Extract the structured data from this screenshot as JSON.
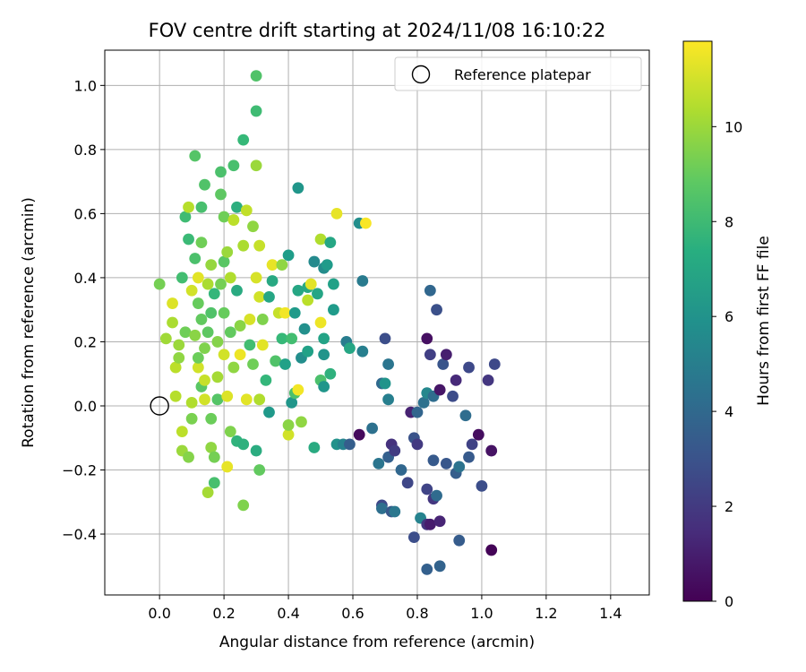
{
  "chart_data": {
    "type": "scatter",
    "title": "FOV centre drift starting at 2024/11/08 16:10:22",
    "xlabel": "Angular distance from reference (arcmin)",
    "ylabel": "Rotation from reference (arcmin)",
    "xlim": [
      -0.17,
      1.52
    ],
    "ylim": [
      -0.59,
      1.11
    ],
    "xticks": [
      "0.0",
      "0.2",
      "0.4",
      "0.6",
      "0.8",
      "1.0",
      "1.2",
      "1.4"
    ],
    "yticks": [
      "−0.4",
      "−0.2",
      "0.0",
      "0.2",
      "0.4",
      "0.6",
      "0.8",
      "1.0"
    ],
    "grid": true,
    "legend": {
      "position": "top-right",
      "label": "Reference platepar"
    },
    "reference_point": {
      "x": 0.0,
      "y": 0.0
    },
    "colorbar": {
      "label": "Hours from first FF file",
      "range": [
        0,
        11.8
      ],
      "ticks": [
        "0",
        "2",
        "4",
        "6",
        "8",
        "10"
      ],
      "colormap": "viridis"
    },
    "points": [
      {
        "x": 0.0,
        "y": 0.38,
        "h": 9.3
      },
      {
        "x": 0.02,
        "y": 0.21,
        "h": 10.1
      },
      {
        "x": 0.04,
        "y": 0.26,
        "h": 10.3
      },
      {
        "x": 0.04,
        "y": 0.32,
        "h": 11.2
      },
      {
        "x": 0.05,
        "y": 0.03,
        "h": 10.5
      },
      {
        "x": 0.05,
        "y": 0.12,
        "h": 10.6
      },
      {
        "x": 0.06,
        "y": 0.19,
        "h": 10.0
      },
      {
        "x": 0.06,
        "y": 0.15,
        "h": 9.8
      },
      {
        "x": 0.07,
        "y": -0.14,
        "h": 10.0
      },
      {
        "x": 0.07,
        "y": -0.08,
        "h": 10.6
      },
      {
        "x": 0.07,
        "y": 0.4,
        "h": 8.2
      },
      {
        "x": 0.08,
        "y": 0.59,
        "h": 8.1
      },
      {
        "x": 0.08,
        "y": 0.23,
        "h": 9.2
      },
      {
        "x": 0.09,
        "y": 0.52,
        "h": 8.0
      },
      {
        "x": 0.09,
        "y": 0.62,
        "h": 10.5
      },
      {
        "x": 0.09,
        "y": -0.16,
        "h": 9.6
      },
      {
        "x": 0.1,
        "y": -0.04,
        "h": 9.4
      },
      {
        "x": 0.1,
        "y": 0.36,
        "h": 11.0
      },
      {
        "x": 0.1,
        "y": 0.01,
        "h": 10.4
      },
      {
        "x": 0.11,
        "y": 0.22,
        "h": 9.7
      },
      {
        "x": 0.11,
        "y": 0.46,
        "h": 8.4
      },
      {
        "x": 0.11,
        "y": 0.78,
        "h": 8.6
      },
      {
        "x": 0.12,
        "y": 0.4,
        "h": 11.3
      },
      {
        "x": 0.12,
        "y": 0.32,
        "h": 9.0
      },
      {
        "x": 0.12,
        "y": 0.12,
        "h": 11.0
      },
      {
        "x": 0.12,
        "y": 0.15,
        "h": 9.1
      },
      {
        "x": 0.13,
        "y": 0.06,
        "h": 8.7
      },
      {
        "x": 0.13,
        "y": 0.27,
        "h": 8.9
      },
      {
        "x": 0.13,
        "y": 0.51,
        "h": 9.2
      },
      {
        "x": 0.13,
        "y": 0.62,
        "h": 8.3
      },
      {
        "x": 0.14,
        "y": 0.69,
        "h": 8.5
      },
      {
        "x": 0.14,
        "y": 0.08,
        "h": 10.8
      },
      {
        "x": 0.14,
        "y": 0.02,
        "h": 11.0
      },
      {
        "x": 0.14,
        "y": 0.18,
        "h": 9.5
      },
      {
        "x": 0.15,
        "y": 0.38,
        "h": 10.3
      },
      {
        "x": 0.15,
        "y": 0.23,
        "h": 8.8
      },
      {
        "x": 0.15,
        "y": -0.27,
        "h": 10.2
      },
      {
        "x": 0.16,
        "y": -0.13,
        "h": 9.8
      },
      {
        "x": 0.16,
        "y": 0.44,
        "h": 9.9
      },
      {
        "x": 0.16,
        "y": 0.29,
        "h": 8.5
      },
      {
        "x": 0.16,
        "y": -0.04,
        "h": 9.1
      },
      {
        "x": 0.17,
        "y": -0.24,
        "h": 8.3
      },
      {
        "x": 0.17,
        "y": 0.35,
        "h": 7.8
      },
      {
        "x": 0.17,
        "y": -0.16,
        "h": 9.3
      },
      {
        "x": 0.18,
        "y": 0.2,
        "h": 9.6
      },
      {
        "x": 0.18,
        "y": 0.02,
        "h": 8.6
      },
      {
        "x": 0.18,
        "y": 0.09,
        "h": 10.2
      },
      {
        "x": 0.19,
        "y": 0.38,
        "h": 9.3
      },
      {
        "x": 0.19,
        "y": 0.73,
        "h": 8.4
      },
      {
        "x": 0.19,
        "y": 0.66,
        "h": 8.8
      },
      {
        "x": 0.2,
        "y": 0.16,
        "h": 11.0
      },
      {
        "x": 0.2,
        "y": 0.29,
        "h": 9.0
      },
      {
        "x": 0.2,
        "y": 0.45,
        "h": 8.7
      },
      {
        "x": 0.2,
        "y": 0.59,
        "h": 9.2
      },
      {
        "x": 0.21,
        "y": -0.19,
        "h": 11.4
      },
      {
        "x": 0.21,
        "y": 0.03,
        "h": 11.2
      },
      {
        "x": 0.21,
        "y": 0.48,
        "h": 10.0
      },
      {
        "x": 0.22,
        "y": -0.08,
        "h": 9.5
      },
      {
        "x": 0.22,
        "y": 0.23,
        "h": 8.9
      },
      {
        "x": 0.22,
        "y": 0.4,
        "h": 10.4
      },
      {
        "x": 0.23,
        "y": 0.75,
        "h": 8.3
      },
      {
        "x": 0.23,
        "y": 0.58,
        "h": 10.6
      },
      {
        "x": 0.23,
        "y": 0.12,
        "h": 9.8
      },
      {
        "x": 0.24,
        "y": 0.36,
        "h": 7.2
      },
      {
        "x": 0.24,
        "y": -0.11,
        "h": 7.6
      },
      {
        "x": 0.24,
        "y": 0.62,
        "h": 7.4
      },
      {
        "x": 0.25,
        "y": 0.16,
        "h": 11.5
      },
      {
        "x": 0.25,
        "y": 0.25,
        "h": 9.7
      },
      {
        "x": 0.26,
        "y": -0.31,
        "h": 9.5
      },
      {
        "x": 0.26,
        "y": 0.83,
        "h": 7.9
      },
      {
        "x": 0.26,
        "y": 0.5,
        "h": 10.3
      },
      {
        "x": 0.26,
        "y": -0.12,
        "h": 7.5
      },
      {
        "x": 0.27,
        "y": 0.02,
        "h": 11.3
      },
      {
        "x": 0.27,
        "y": 0.61,
        "h": 10.7
      },
      {
        "x": 0.28,
        "y": 0.19,
        "h": 8.2
      },
      {
        "x": 0.28,
        "y": 0.27,
        "h": 11.1
      },
      {
        "x": 0.29,
        "y": 0.56,
        "h": 9.8
      },
      {
        "x": 0.29,
        "y": 0.13,
        "h": 9.2
      },
      {
        "x": 0.3,
        "y": 1.03,
        "h": 8.5
      },
      {
        "x": 0.3,
        "y": 0.92,
        "h": 8.1
      },
      {
        "x": 0.3,
        "y": -0.14,
        "h": 7.3
      },
      {
        "x": 0.3,
        "y": 0.4,
        "h": 11.1
      },
      {
        "x": 0.3,
        "y": 0.75,
        "h": 10.0
      },
      {
        "x": 0.31,
        "y": -0.2,
        "h": 8.9
      },
      {
        "x": 0.31,
        "y": 0.02,
        "h": 10.4
      },
      {
        "x": 0.31,
        "y": 0.5,
        "h": 10.8
      },
      {
        "x": 0.31,
        "y": 0.34,
        "h": 11.0
      },
      {
        "x": 0.32,
        "y": 0.27,
        "h": 9.5
      },
      {
        "x": 0.32,
        "y": 0.19,
        "h": 11.3
      },
      {
        "x": 0.33,
        "y": 0.08,
        "h": 7.8
      },
      {
        "x": 0.34,
        "y": -0.02,
        "h": 6.3
      },
      {
        "x": 0.34,
        "y": 0.34,
        "h": 7.0
      },
      {
        "x": 0.35,
        "y": 0.44,
        "h": 11.4
      },
      {
        "x": 0.35,
        "y": 0.39,
        "h": 7.1
      },
      {
        "x": 0.36,
        "y": 0.14,
        "h": 8.5
      },
      {
        "x": 0.37,
        "y": 0.29,
        "h": 10.8
      },
      {
        "x": 0.38,
        "y": 0.21,
        "h": 7.9
      },
      {
        "x": 0.38,
        "y": 0.44,
        "h": 9.8
      },
      {
        "x": 0.39,
        "y": 0.13,
        "h": 6.7
      },
      {
        "x": 0.39,
        "y": 0.29,
        "h": 11.6
      },
      {
        "x": 0.4,
        "y": -0.09,
        "h": 11.0
      },
      {
        "x": 0.4,
        "y": -0.06,
        "h": 9.7
      },
      {
        "x": 0.4,
        "y": 0.47,
        "h": 6.5
      },
      {
        "x": 0.41,
        "y": 0.21,
        "h": 8.2
      },
      {
        "x": 0.41,
        "y": 0.01,
        "h": 6.2
      },
      {
        "x": 0.42,
        "y": 0.04,
        "h": 8.4
      },
      {
        "x": 0.42,
        "y": 0.29,
        "h": 6.4
      },
      {
        "x": 0.43,
        "y": 0.68,
        "h": 6.2
      },
      {
        "x": 0.43,
        "y": 0.05,
        "h": 11.6
      },
      {
        "x": 0.43,
        "y": 0.36,
        "h": 7.0
      },
      {
        "x": 0.44,
        "y": -0.05,
        "h": 9.8
      },
      {
        "x": 0.44,
        "y": 0.15,
        "h": 5.8
      },
      {
        "x": 0.45,
        "y": 0.24,
        "h": 5.9
      },
      {
        "x": 0.46,
        "y": 0.37,
        "h": 7.1
      },
      {
        "x": 0.46,
        "y": 0.17,
        "h": 6.7
      },
      {
        "x": 0.46,
        "y": 0.33,
        "h": 10.6
      },
      {
        "x": 0.47,
        "y": 0.38,
        "h": 11.3
      },
      {
        "x": 0.48,
        "y": 0.45,
        "h": 5.6
      },
      {
        "x": 0.48,
        "y": -0.13,
        "h": 7.2
      },
      {
        "x": 0.49,
        "y": 0.35,
        "h": 6.9
      },
      {
        "x": 0.5,
        "y": 0.08,
        "h": 8.4
      },
      {
        "x": 0.5,
        "y": 0.26,
        "h": 11.5
      },
      {
        "x": 0.5,
        "y": 0.52,
        "h": 10.4
      },
      {
        "x": 0.51,
        "y": 0.21,
        "h": 6.8
      },
      {
        "x": 0.51,
        "y": 0.06,
        "h": 6.2
      },
      {
        "x": 0.51,
        "y": 0.43,
        "h": 5.7
      },
      {
        "x": 0.51,
        "y": 0.16,
        "h": 6.1
      },
      {
        "x": 0.52,
        "y": 0.44,
        "h": 6.4
      },
      {
        "x": 0.53,
        "y": 0.51,
        "h": 7.0
      },
      {
        "x": 0.53,
        "y": 0.1,
        "h": 7.5
      },
      {
        "x": 0.54,
        "y": 0.38,
        "h": 6.7
      },
      {
        "x": 0.54,
        "y": 0.3,
        "h": 6.4
      },
      {
        "x": 0.55,
        "y": 0.6,
        "h": 11.4
      },
      {
        "x": 0.55,
        "y": -0.12,
        "h": 6.0
      },
      {
        "x": 0.57,
        "y": -0.12,
        "h": 5.3
      },
      {
        "x": 0.58,
        "y": 0.2,
        "h": 5.0
      },
      {
        "x": 0.59,
        "y": 0.18,
        "h": 7.0
      },
      {
        "x": 0.59,
        "y": -0.12,
        "h": 3.5
      },
      {
        "x": 0.62,
        "y": -0.09,
        "h": 0.3
      },
      {
        "x": 0.62,
        "y": 0.57,
        "h": 5.8
      },
      {
        "x": 0.63,
        "y": 0.39,
        "h": 4.9
      },
      {
        "x": 0.63,
        "y": 0.17,
        "h": 5.1
      },
      {
        "x": 0.64,
        "y": 0.57,
        "h": 11.7
      },
      {
        "x": 0.66,
        "y": -0.07,
        "h": 4.4
      },
      {
        "x": 0.68,
        "y": -0.18,
        "h": 4.6
      },
      {
        "x": 0.69,
        "y": -0.31,
        "h": 2.6
      },
      {
        "x": 0.69,
        "y": 0.07,
        "h": 4.0
      },
      {
        "x": 0.69,
        "y": -0.32,
        "h": 4.3
      },
      {
        "x": 0.7,
        "y": 0.21,
        "h": 2.8
      },
      {
        "x": 0.7,
        "y": 0.07,
        "h": 6.1
      },
      {
        "x": 0.71,
        "y": -0.16,
        "h": 3.6
      },
      {
        "x": 0.71,
        "y": 0.13,
        "h": 4.6
      },
      {
        "x": 0.71,
        "y": 0.02,
        "h": 5.1
      },
      {
        "x": 0.72,
        "y": -0.33,
        "h": 3.2
      },
      {
        "x": 0.72,
        "y": -0.12,
        "h": 1.7
      },
      {
        "x": 0.73,
        "y": -0.14,
        "h": 2.1
      },
      {
        "x": 0.73,
        "y": -0.33,
        "h": 4.7
      },
      {
        "x": 0.75,
        "y": -0.2,
        "h": 3.9
      },
      {
        "x": 0.77,
        "y": -0.24,
        "h": 2.5
      },
      {
        "x": 0.78,
        "y": -0.02,
        "h": 1.1
      },
      {
        "x": 0.79,
        "y": -0.41,
        "h": 2.8
      },
      {
        "x": 0.79,
        "y": -0.1,
        "h": 3.0
      },
      {
        "x": 0.8,
        "y": -0.02,
        "h": 3.8
      },
      {
        "x": 0.8,
        "y": -0.12,
        "h": 2.0
      },
      {
        "x": 0.81,
        "y": -0.35,
        "h": 5.3
      },
      {
        "x": 0.82,
        "y": 0.01,
        "h": 4.4
      },
      {
        "x": 0.83,
        "y": -0.51,
        "h": 3.6
      },
      {
        "x": 0.83,
        "y": 0.21,
        "h": 0.5
      },
      {
        "x": 0.83,
        "y": -0.26,
        "h": 2.4
      },
      {
        "x": 0.83,
        "y": -0.37,
        "h": 1.8
      },
      {
        "x": 0.83,
        "y": 0.04,
        "h": 5.5
      },
      {
        "x": 0.84,
        "y": 0.36,
        "h": 3.9
      },
      {
        "x": 0.84,
        "y": -0.37,
        "h": 0.9
      },
      {
        "x": 0.84,
        "y": 0.16,
        "h": 2.2
      },
      {
        "x": 0.85,
        "y": -0.29,
        "h": 1.9
      },
      {
        "x": 0.85,
        "y": -0.17,
        "h": 3.3
      },
      {
        "x": 0.85,
        "y": 0.03,
        "h": 4.2
      },
      {
        "x": 0.86,
        "y": 0.3,
        "h": 2.9
      },
      {
        "x": 0.86,
        "y": -0.28,
        "h": 4.1
      },
      {
        "x": 0.87,
        "y": -0.5,
        "h": 3.7
      },
      {
        "x": 0.87,
        "y": 0.05,
        "h": 0.7
      },
      {
        "x": 0.87,
        "y": -0.36,
        "h": 1.2
      },
      {
        "x": 0.88,
        "y": 0.13,
        "h": 3.1
      },
      {
        "x": 0.89,
        "y": 0.16,
        "h": 1.0
      },
      {
        "x": 0.89,
        "y": -0.18,
        "h": 3.2
      },
      {
        "x": 0.91,
        "y": 0.03,
        "h": 2.7
      },
      {
        "x": 0.92,
        "y": -0.21,
        "h": 3.5
      },
      {
        "x": 0.92,
        "y": 0.08,
        "h": 1.4
      },
      {
        "x": 0.93,
        "y": -0.42,
        "h": 3.4
      },
      {
        "x": 0.93,
        "y": -0.19,
        "h": 4.5
      },
      {
        "x": 0.95,
        "y": -0.03,
        "h": 4.2
      },
      {
        "x": 0.96,
        "y": 0.12,
        "h": 2.6
      },
      {
        "x": 0.96,
        "y": -0.16,
        "h": 3.3
      },
      {
        "x": 0.97,
        "y": -0.12,
        "h": 2.3
      },
      {
        "x": 0.99,
        "y": -0.09,
        "h": 0.4
      },
      {
        "x": 1.0,
        "y": -0.25,
        "h": 2.8
      },
      {
        "x": 1.02,
        "y": 0.08,
        "h": 1.9
      },
      {
        "x": 1.03,
        "y": -0.14,
        "h": 0.6
      },
      {
        "x": 1.03,
        "y": -0.45,
        "h": 0.1
      },
      {
        "x": 1.04,
        "y": 0.13,
        "h": 2.6
      }
    ]
  }
}
